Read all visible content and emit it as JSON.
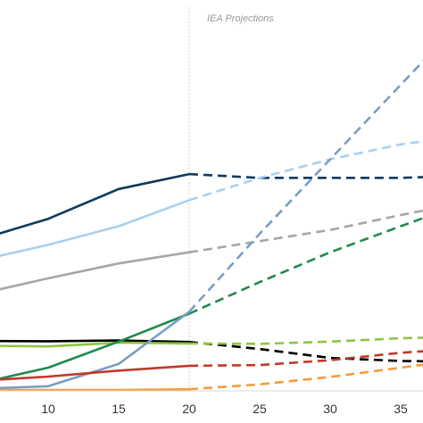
{
  "chart_data": {
    "type": "line",
    "annotation": "IEA Projections",
    "divider_x": 20,
    "xlim": [
      3,
      39
    ],
    "ylim": [
      0,
      100
    ],
    "x_ticks": [
      "10",
      "15",
      "20",
      "25",
      "30",
      "35"
    ],
    "grid": false,
    "legend": "none",
    "series": [
      {
        "color": "#0d3a5c",
        "values": [
          [
            3,
            38
          ],
          [
            10,
            46
          ],
          [
            15,
            54
          ],
          [
            20,
            58
          ]
        ],
        "projection": [
          [
            20,
            58
          ],
          [
            25,
            57
          ],
          [
            30,
            57
          ],
          [
            35,
            57
          ],
          [
            39,
            57.5
          ]
        ]
      },
      {
        "color": "#a8d1ee",
        "values": [
          [
            3,
            33
          ],
          [
            10,
            39
          ],
          [
            15,
            44
          ],
          [
            20,
            51
          ]
        ],
        "projection": [
          [
            20,
            51
          ],
          [
            25,
            57
          ],
          [
            30,
            62
          ],
          [
            35,
            66
          ],
          [
            39,
            68
          ]
        ]
      },
      {
        "color": "#a6a6a6",
        "values": [
          [
            3,
            24
          ],
          [
            10,
            30
          ],
          [
            15,
            34
          ],
          [
            20,
            37
          ]
        ],
        "projection": [
          [
            20,
            37
          ],
          [
            25,
            40
          ],
          [
            30,
            43
          ],
          [
            35,
            47
          ],
          [
            39,
            50
          ]
        ]
      },
      {
        "color": "#000000",
        "values": [
          [
            3,
            13.2
          ],
          [
            10,
            13.1
          ],
          [
            15,
            13.3
          ],
          [
            20,
            12.9
          ]
        ],
        "projection": [
          [
            20,
            12.9
          ],
          [
            25,
            11
          ],
          [
            30,
            8.6
          ],
          [
            35,
            7.8
          ],
          [
            39,
            7.6
          ]
        ]
      },
      {
        "color": "#8dc63f",
        "values": [
          [
            3,
            12
          ],
          [
            10,
            11.7
          ],
          [
            15,
            12.7
          ],
          [
            20,
            12.5
          ]
        ],
        "projection": [
          [
            20,
            12.5
          ],
          [
            25,
            12.4
          ],
          [
            30,
            13
          ],
          [
            35,
            13.9
          ],
          [
            39,
            14.3
          ]
        ]
      },
      {
        "color": "#1e8a4f",
        "values": [
          [
            3,
            0
          ],
          [
            10,
            6
          ],
          [
            15,
            13
          ],
          [
            20,
            20.5
          ]
        ],
        "projection": [
          [
            20,
            20.5
          ],
          [
            25,
            29
          ],
          [
            30,
            37
          ],
          [
            35,
            44
          ],
          [
            39,
            49.5
          ]
        ]
      },
      {
        "color": "#7a9dc5",
        "values": [
          [
            3,
            0
          ],
          [
            10,
            1
          ],
          [
            15,
            7
          ],
          [
            20,
            21
          ]
        ],
        "projection": [
          [
            20,
            21
          ],
          [
            25,
            42
          ],
          [
            30,
            62
          ],
          [
            35,
            82
          ],
          [
            39,
            98
          ]
        ]
      },
      {
        "color": "#c0392b",
        "values": [
          [
            3,
            2
          ],
          [
            10,
            3.6
          ],
          [
            15,
            5.2
          ],
          [
            20,
            6.5
          ]
        ],
        "projection": [
          [
            20,
            6.5
          ],
          [
            25,
            6.7
          ],
          [
            30,
            8
          ],
          [
            35,
            10
          ],
          [
            39,
            11
          ]
        ]
      },
      {
        "color": "#f39c3d",
        "values": [
          [
            3,
            0
          ],
          [
            10,
            0
          ],
          [
            15,
            0
          ],
          [
            20,
            0.2
          ]
        ],
        "projection": [
          [
            20,
            0.2
          ],
          [
            25,
            1.5
          ],
          [
            30,
            3.5
          ],
          [
            35,
            6
          ],
          [
            39,
            8
          ]
        ]
      }
    ]
  }
}
